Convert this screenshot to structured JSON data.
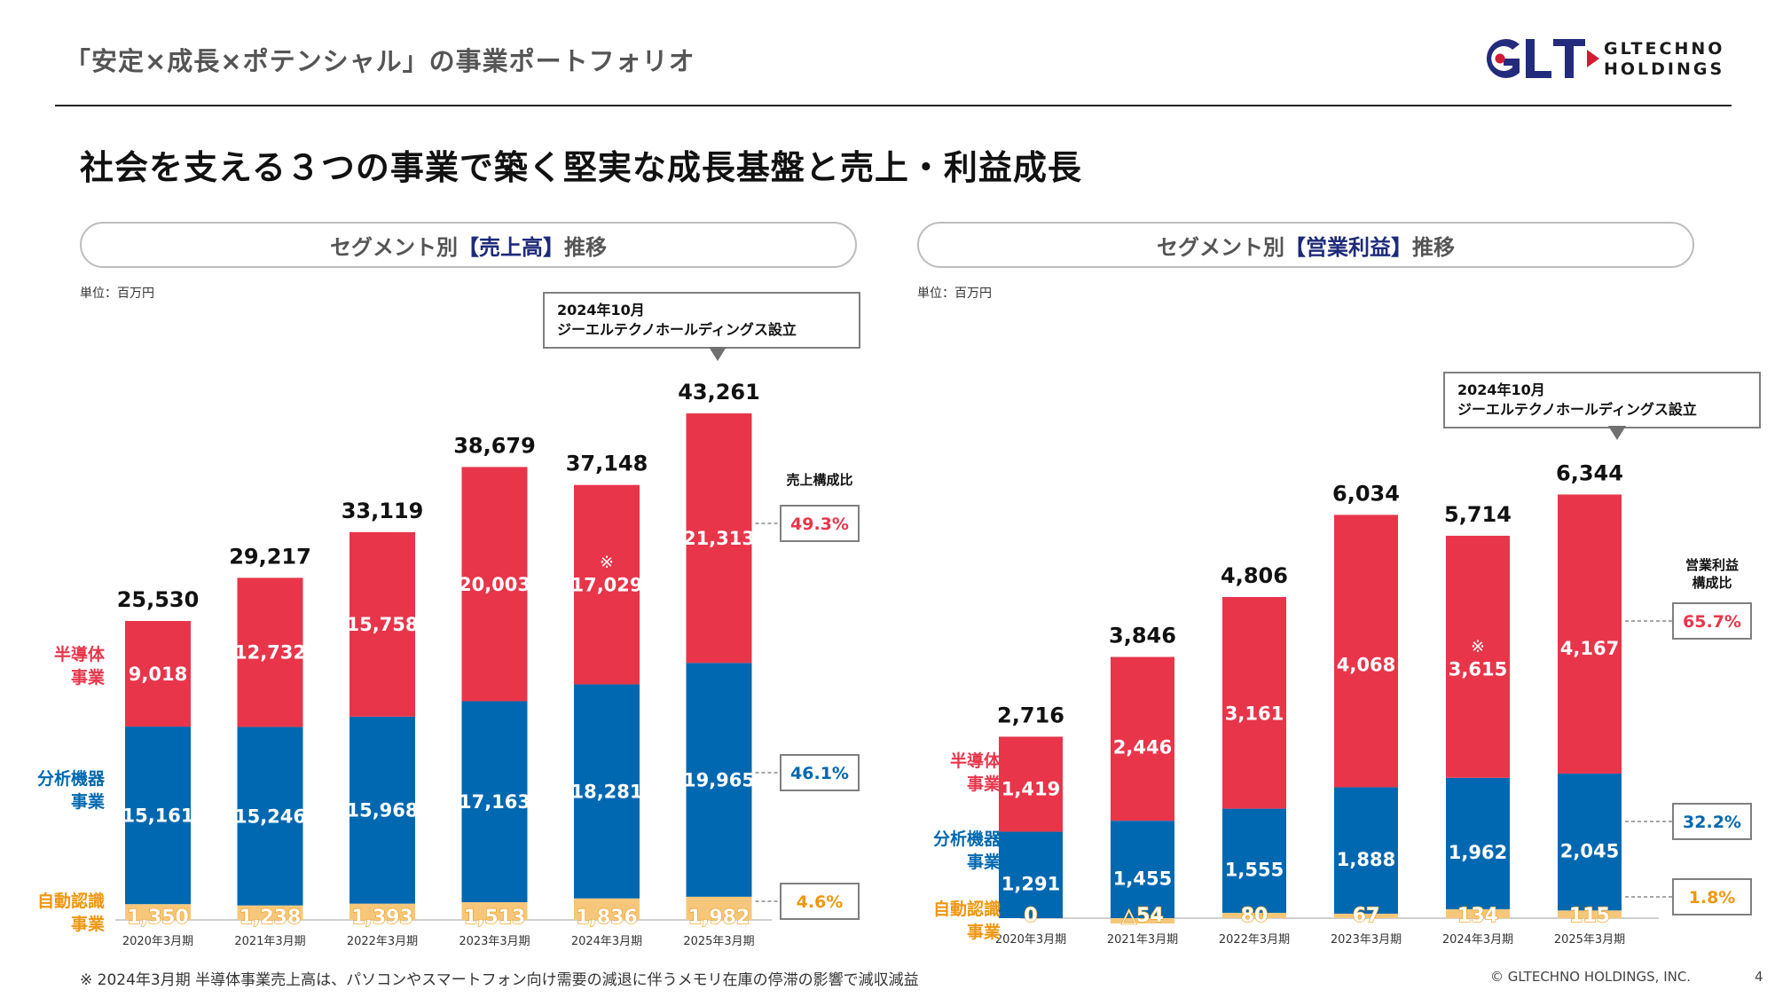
{
  "header": {
    "title": "「安定×成長×ポテンシャル」の事業ポートフォリオ",
    "logo_mark": "GLT",
    "logo_line1": "GLTECHNO",
    "logo_line2": "HOLDINGS"
  },
  "headline": "社会を支える３つの事業で築く堅実な成長基盤と売上・利益成長",
  "colors": {
    "semiconductor": "#e8354a",
    "analytical": "#0068b0",
    "auto_id": "#f6c77a",
    "auto_id_text": "#f0960f",
    "navy": "#1e2a7a",
    "gray_border": "#7f7f7f"
  },
  "segments": [
    {
      "key": "semiconductor",
      "label_line1": "半導体",
      "label_line2": "事業"
    },
    {
      "key": "analytical",
      "label_line1": "分析機器",
      "label_line2": "事業"
    },
    {
      "key": "auto_id",
      "label_line1": "自動認識",
      "label_line2": "事業"
    }
  ],
  "callout": {
    "line1": "2024年10月",
    "line2": "ジーエルテクノホールディングス設立"
  },
  "left_panel": {
    "pill_prefix": "セグメント別 ",
    "pill_highlight": "【売上高】",
    "pill_suffix": "推移",
    "unit": "単位：百万円",
    "ratio_title_line1": "売上構成比",
    "ratio_title_line2": ""
  },
  "right_panel": {
    "pill_prefix": "セグメント別",
    "pill_highlight": "【営業利益】",
    "pill_suffix": "推移",
    "unit": "単位：百万円",
    "ratio_title_line1": "営業利益",
    "ratio_title_line2": "構成比"
  },
  "footnote": "※ 2024年3月期 半導体事業売上高は、パソコンやスマートフォン向け需要の減退に伴うメモリ在庫の停滞の影響で減収減益",
  "copyright": "© GLTECHNO HOLDINGS, INC.",
  "page_number": "4",
  "chart_data": [
    {
      "type": "bar",
      "stacked": true,
      "title": "セグメント別【売上高】推移",
      "unit": "百万円",
      "categories": [
        "2020年3月期",
        "2021年3月期",
        "2022年3月期",
        "2023年3月期",
        "2024年3月期",
        "2025年3月期"
      ],
      "series": [
        {
          "name": "自動認識事業",
          "key": "auto_id",
          "values": [
            1350,
            1238,
            1393,
            1513,
            1836,
            1982
          ],
          "labels": [
            "1,350",
            "1,238",
            "1,393",
            "1,513",
            "1,836",
            "1,982"
          ]
        },
        {
          "name": "分析機器事業",
          "key": "analytical",
          "values": [
            15161,
            15246,
            15968,
            17163,
            18281,
            19965
          ],
          "labels": [
            "15,161",
            "15,246",
            "15,968",
            "17,163",
            "18,281",
            "19,965"
          ]
        },
        {
          "name": "半導体事業",
          "key": "semiconductor",
          "values": [
            9018,
            12732,
            15758,
            20003,
            17029,
            21313
          ],
          "labels": [
            "9,018",
            "12,732",
            "15,758",
            "20,003",
            "17,029",
            "21,313"
          ]
        }
      ],
      "totals": [
        "25,530",
        "29,217",
        "33,119",
        "38,679",
        "37,148",
        "43,261"
      ],
      "note_marks": [
        "",
        "",
        "",
        "",
        "※",
        ""
      ],
      "note_mark_series": "semiconductor",
      "composition_ratio": {
        "semiconductor": "49.3%",
        "analytical": "46.1%",
        "auto_id": "4.6%"
      },
      "callout_category_index": 5,
      "ylim": [
        0,
        45000
      ]
    },
    {
      "type": "bar",
      "stacked": true,
      "title": "セグメント別【営業利益】推移",
      "unit": "百万円",
      "categories": [
        "2020年3月期",
        "2021年3月期",
        "2022年3月期",
        "2023年3月期",
        "2024年3月期",
        "2025年3月期"
      ],
      "series": [
        {
          "name": "自動認識事業",
          "key": "auto_id",
          "values": [
            0,
            -54,
            80,
            67,
            134,
            115
          ],
          "labels": [
            "0",
            "△54",
            "80",
            "67",
            "134",
            "115"
          ]
        },
        {
          "name": "分析機器事業",
          "key": "analytical",
          "values": [
            1291,
            1455,
            1555,
            1888,
            1962,
            2045
          ],
          "labels": [
            "1,291",
            "1,455",
            "1,555",
            "1,888",
            "1,962",
            "2,045"
          ]
        },
        {
          "name": "半導体事業",
          "key": "semiconductor",
          "values": [
            1419,
            2446,
            3161,
            4068,
            3615,
            4167
          ],
          "labels": [
            "1,419",
            "2,446",
            "3,161",
            "4,068",
            "3,615",
            "4,167"
          ]
        }
      ],
      "totals": [
        "2,716",
        "3,846",
        "4,806",
        "6,034",
        "5,714",
        "6,344"
      ],
      "note_marks": [
        "",
        "",
        "",
        "",
        "※",
        ""
      ],
      "note_mark_series": "semiconductor",
      "composition_ratio": {
        "semiconductor": "65.7%",
        "analytical": "32.2%",
        "auto_id": "1.8%"
      },
      "callout_category_index": 5,
      "ylim": [
        0,
        7000
      ]
    }
  ]
}
